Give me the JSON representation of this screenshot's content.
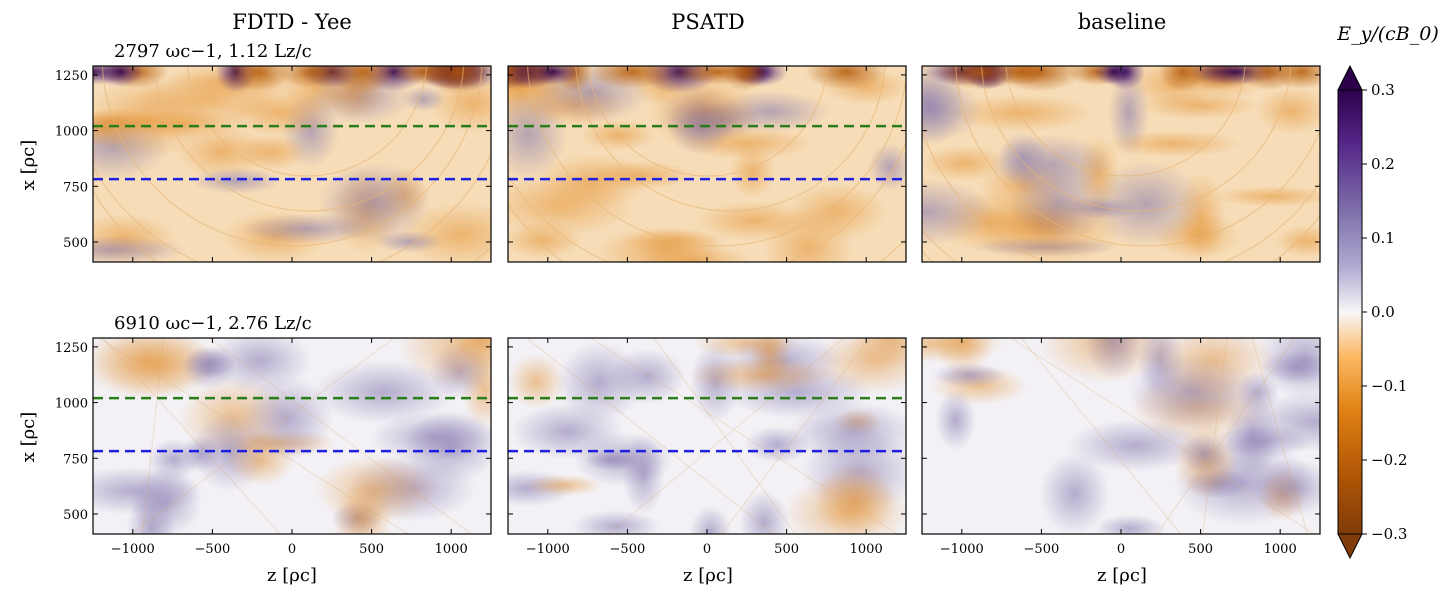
{
  "figure": {
    "column_titles": [
      "FDTD - Yee",
      "PSATD",
      "baseline"
    ],
    "colorbar": {
      "label": "E_y/(cB_0)",
      "ticks": [
        "0.3",
        "0.2",
        "0.1",
        "0.0",
        "−0.1",
        "−0.2",
        "−0.3"
      ],
      "colormap": "PuOr",
      "colors": {
        "high": "#2d004b",
        "mid": "#f7f7f7",
        "low": "#7f3b08"
      },
      "extend": "both"
    },
    "x_ticks": [
      "−1000",
      "−500",
      "0",
      "500",
      "1000"
    ],
    "y_ticks": [
      "1250",
      "1000",
      "750",
      "500"
    ],
    "xlabel": "z [ρc]",
    "ylabel": "x [ρc]",
    "rows": [
      {
        "time_label": "2797 ωc−1,  1.12 Lz/c"
      },
      {
        "time_label": "6910 ωc−1,  2.76 Lz/c"
      }
    ]
  },
  "chart_data": {
    "type": "heatmap",
    "variable": "E_y/(cB_0)",
    "columns": [
      "FDTD - Yee",
      "PSATD",
      "baseline"
    ],
    "rows_time": [
      {
        "omega_c_inv": 2797,
        "Lz_over_c": 1.12
      },
      {
        "omega_c_inv": 6910,
        "Lz_over_c": 2.76
      }
    ],
    "xlabel": "z [ρc]",
    "ylabel": "x [ρc]",
    "xlim": [
      -1250,
      1250
    ],
    "ylim": [
      410,
      1290
    ],
    "x_ticks": [
      -1000,
      -500,
      0,
      500,
      1000
    ],
    "y_ticks": [
      500,
      750,
      1000,
      1250
    ],
    "clim": [
      -0.3,
      0.3
    ],
    "colorbar_ticks": [
      -0.3,
      -0.2,
      -0.1,
      0.0,
      0.1,
      0.2,
      0.3
    ],
    "reference_lines": [
      {
        "x_value": 1020,
        "color": "#2a7d1a",
        "style": "dashed",
        "panels": [
          "FDTD - Yee",
          "PSATD"
        ]
      },
      {
        "x_value": 782,
        "color": "#1f1fe0",
        "style": "dashed",
        "panels": [
          "FDTD - Yee",
          "PSATD"
        ]
      }
    ]
  }
}
